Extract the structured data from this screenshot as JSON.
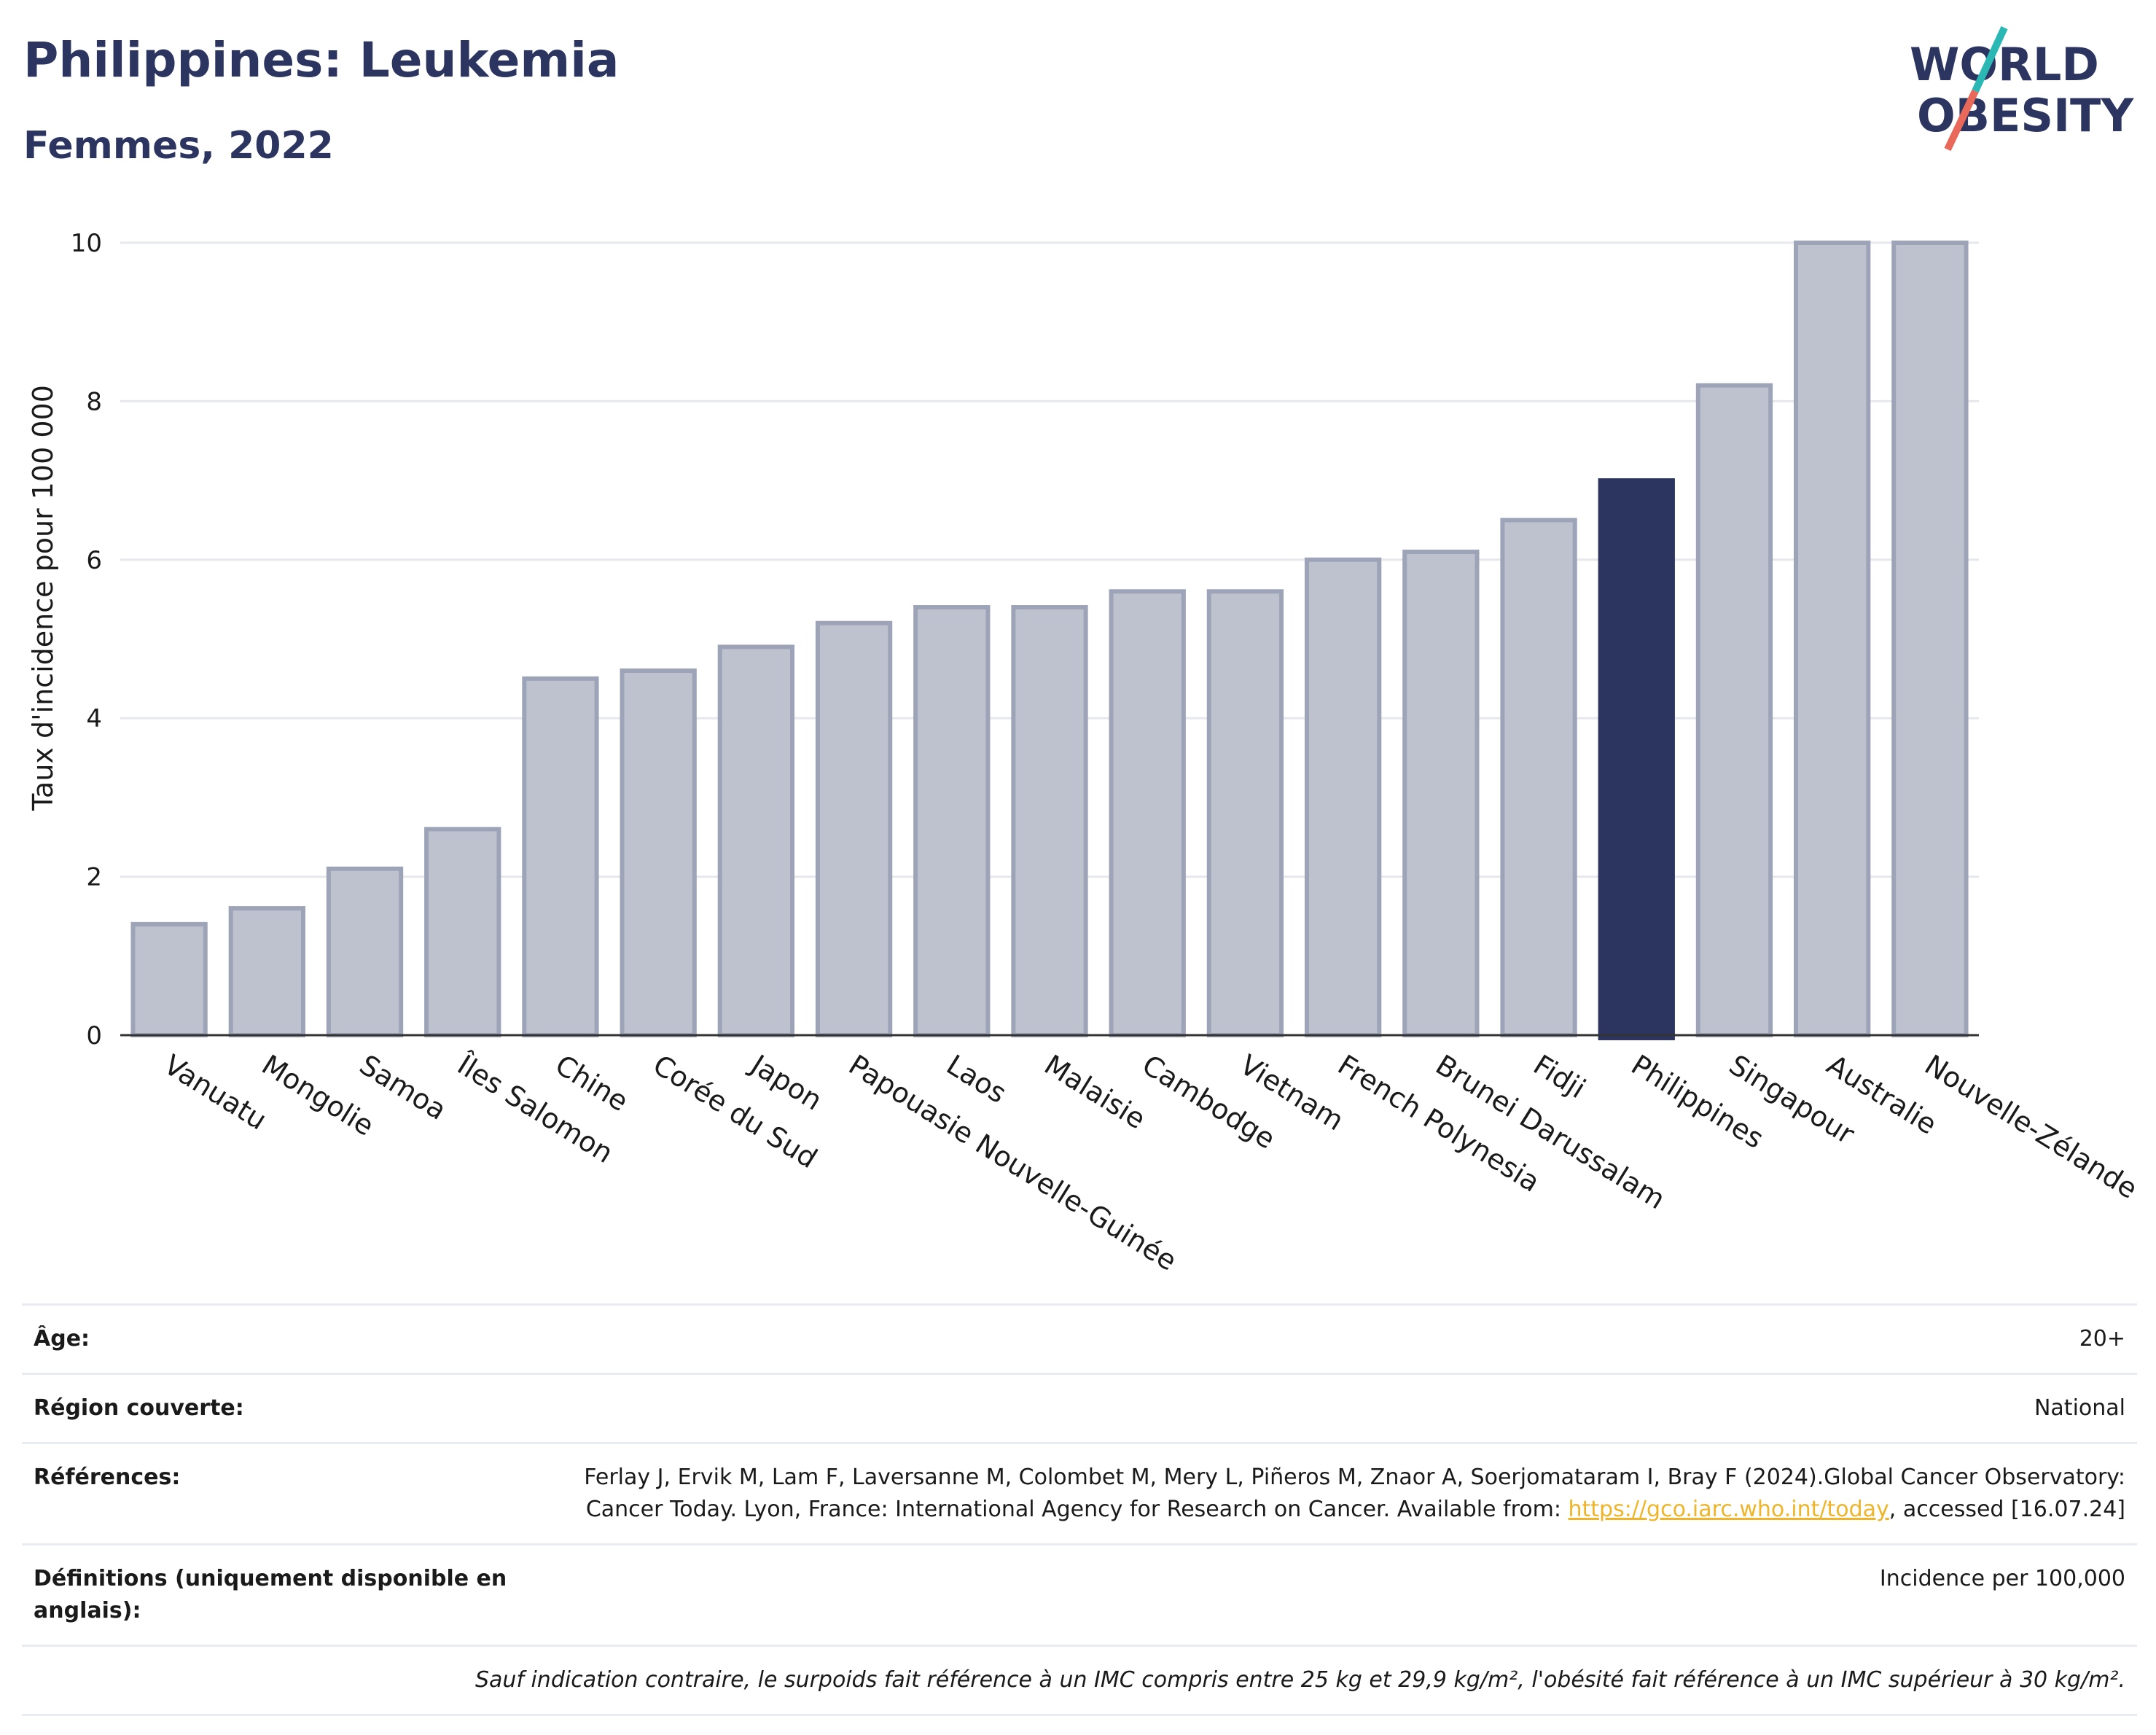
{
  "header": {
    "title": "Philippines: Leukemia",
    "subtitle": "Femmes, 2022",
    "logo_text": [
      "WORLD",
      "OBESITY"
    ]
  },
  "colors": {
    "bar": "#bec2cf",
    "bar_stroke": "#9ea4b8",
    "highlight": "#2b3560",
    "grid": "#e6e8ee",
    "title": "#2b3560",
    "logo_teal": "#2bb8b5",
    "logo_red": "#e8685a"
  },
  "chart_data": {
    "type": "bar",
    "title": "Philippines: Leukemia",
    "subtitle": "Femmes, 2022",
    "xlabel": "",
    "ylabel": "Taux d'incidence pour 100 000",
    "ylim": [
      0,
      10
    ],
    "yticks": [
      0,
      2,
      4,
      6,
      8,
      10
    ],
    "grid": true,
    "highlight": "Philippines",
    "categories": [
      "Vanuatu",
      "Mongolie",
      "Samoa",
      "Îles Salomon",
      "Chine",
      "Corée du Sud",
      "Japon",
      "Papouasie Nouvelle-Guinée",
      "Laos",
      "Malaisie",
      "Cambodge",
      "Vietnam",
      "French Polynesia",
      "Brunei Darussalam",
      "Fidji",
      "Philippines",
      "Singapour",
      "Australie",
      "Nouvelle-Zélande"
    ],
    "values": [
      1.4,
      1.6,
      2.1,
      2.6,
      4.5,
      4.6,
      4.9,
      5.2,
      5.4,
      5.4,
      5.6,
      5.6,
      6.0,
      6.1,
      6.5,
      7.0,
      8.2,
      10.0,
      10.0
    ]
  },
  "meta": {
    "age_label": "Âge:",
    "age_value": "20+",
    "region_label": "Région couverte:",
    "region_value": "National",
    "refs_label": "Références:",
    "refs_text": "Ferlay J, Ervik M, Lam F, Laversanne M, Colombet M, Mery L, Piñeros M, Znaor A, Soerjomataram I, Bray F (2024).Global Cancer Observatory: Cancer Today. Lyon, France: International Agency for Research on Cancer. Available from: ",
    "refs_link": "https://gco.iarc.who.int/today",
    "refs_tail": ", accessed [16.07.24]",
    "defs_label": "Définitions (uniquement disponible en anglais):",
    "defs_value": "Incidence per 100,000",
    "note": "Sauf indication contraire, le surpoids fait référence à un IMC compris entre 25 kg et 29,9 kg/m², l'obésité fait référence à un IMC supérieur à 30 kg/m²."
  }
}
